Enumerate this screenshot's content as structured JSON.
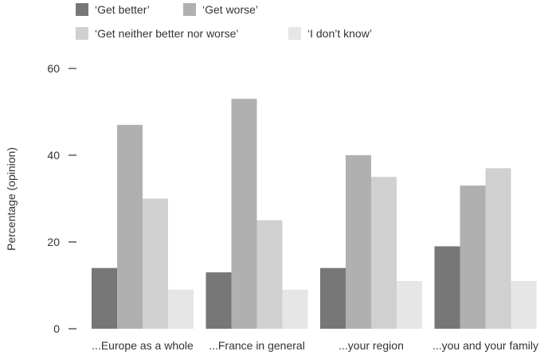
{
  "chart_data": {
    "type": "bar",
    "title": "",
    "xlabel": "",
    "ylabel": "Percentage (opinion)",
    "ylim": [
      0,
      60
    ],
    "yticks": [
      0,
      20,
      40,
      60
    ],
    "grid": false,
    "legend_position": "top-left",
    "categories": [
      "...Europe as a whole",
      "...France in general",
      "...your region",
      "...you and your family"
    ],
    "series": [
      {
        "name": "‘Get better’",
        "color": "#777777",
        "values": [
          14,
          13,
          14,
          19
        ]
      },
      {
        "name": "‘Get worse’",
        "color": "#b0b0b0",
        "values": [
          47,
          53,
          40,
          33
        ]
      },
      {
        "name": "‘Get neither better nor worse’",
        "color": "#d0d0d0",
        "values": [
          30,
          25,
          35,
          37
        ]
      },
      {
        "name": "‘I don’t know’",
        "color": "#e6e6e6",
        "values": [
          9,
          9,
          11,
          11
        ]
      }
    ]
  }
}
